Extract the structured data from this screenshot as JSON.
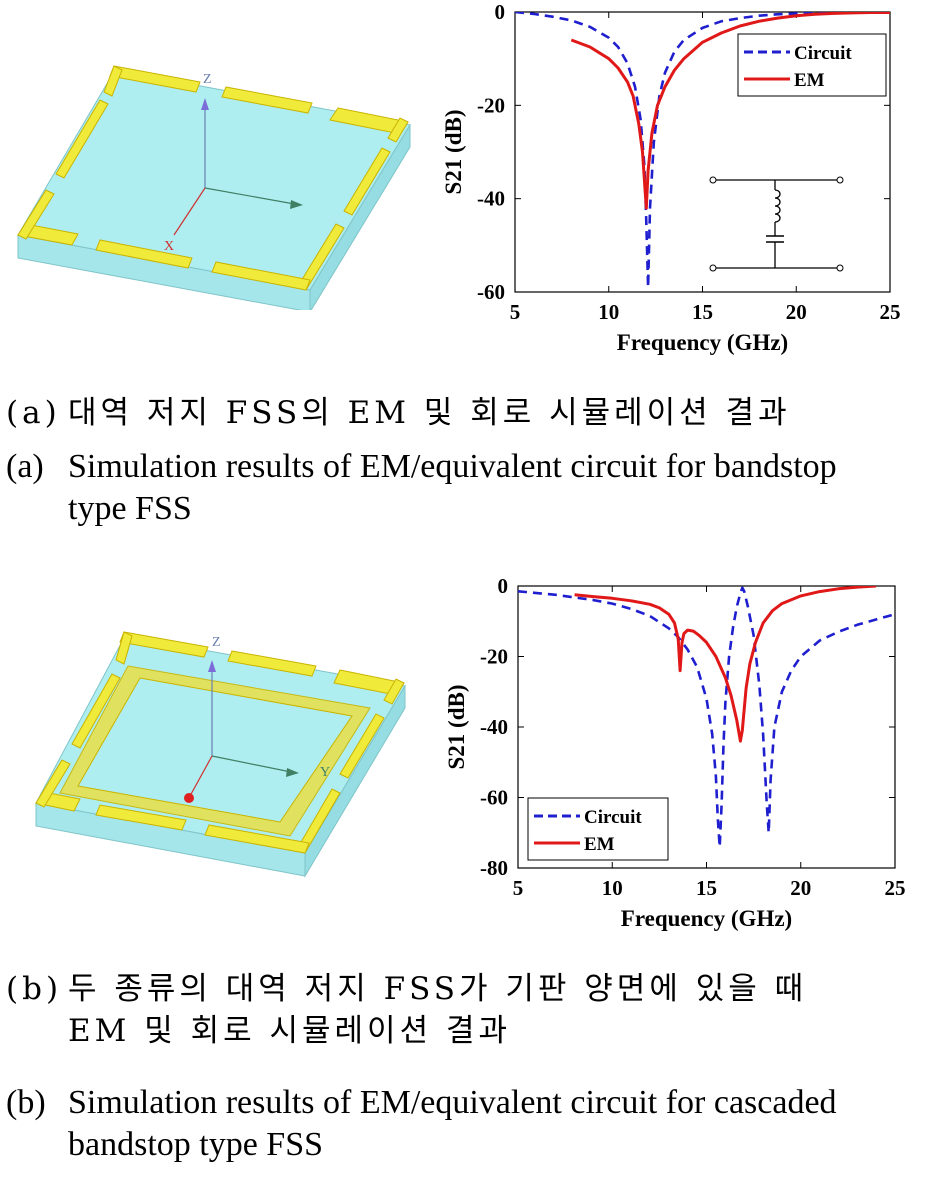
{
  "panel_a": {
    "caption_ko": {
      "tag": "(a)",
      "text": "대역  저지  FSS의  EM  및  회로  시뮬레이션  결과"
    },
    "caption_en": {
      "tag": "(a)",
      "line1": "Simulation results of EM/equivalent circuit for bandstop",
      "line2": "type FSS"
    },
    "model_axes": {
      "z": "Z",
      "x": "X"
    }
  },
  "panel_b": {
    "caption_ko": {
      "tag": "(b)",
      "line1": "두  종류의  대역  저지  FSS가  기판  양면에  있을  때",
      "line2": "EM  및  회로  시뮬레이션  결과"
    },
    "caption_en": {
      "tag": "(b)",
      "line1": "Simulation results of EM/equivalent circuit for cascaded",
      "line2": "bandstop type FSS"
    },
    "model_axes": {
      "z": "Z",
      "y": "Y"
    }
  },
  "colors": {
    "circuit": "#1f1fd0",
    "em": "#e01818",
    "substrate": "#aeeef0",
    "metal": "#f0ea3a",
    "metal_edge": "#c9b400"
  },
  "chart_data": [
    {
      "type": "line",
      "xlabel": "Frequency (GHz)",
      "ylabel": "S21 (dB)",
      "xlim": [
        5,
        25
      ],
      "ylim": [
        -60,
        0
      ],
      "xticks": [
        5,
        10,
        15,
        20,
        25
      ],
      "yticks": [
        0,
        -20,
        -40,
        -60
      ],
      "legend_position": "top-right",
      "inset": "series LC resonator (shunt) schematic",
      "series": [
        {
          "name": "Circuit",
          "style": "dashed",
          "color": "#1f1fd0",
          "x": [
            5,
            6,
            7,
            8,
            9,
            10,
            10.5,
            11,
            11.4,
            11.7,
            11.9,
            12.0,
            12.05,
            12.1,
            12.2,
            12.4,
            12.7,
            13,
            13.5,
            14,
            15,
            16,
            17,
            18,
            19,
            20,
            21,
            22,
            23,
            24,
            25
          ],
          "y": [
            0,
            -0.4,
            -1,
            -1.8,
            -3.2,
            -5.5,
            -7.5,
            -11,
            -16,
            -23,
            -33,
            -45,
            -52,
            -59,
            -42,
            -28,
            -18,
            -13,
            -8.5,
            -6,
            -3.4,
            -2,
            -1.3,
            -0.8,
            -0.5,
            -0.3,
            -0.2,
            -0.1,
            -0.05,
            0,
            0
          ]
        },
        {
          "name": "EM",
          "style": "solid",
          "color": "#e01818",
          "x": [
            8,
            9,
            10,
            10.5,
            11,
            11.3,
            11.6,
            11.8,
            11.9,
            12.0,
            12.1,
            12.3,
            12.6,
            13,
            13.5,
            14,
            15,
            16,
            17,
            18,
            19,
            20,
            21,
            22,
            23,
            24,
            25
          ],
          "y": [
            -6,
            -7.5,
            -10,
            -12,
            -15,
            -18,
            -24,
            -30,
            -36,
            -42,
            -34,
            -26,
            -20,
            -16,
            -12.5,
            -10,
            -6.5,
            -4.5,
            -3,
            -2,
            -1.3,
            -0.8,
            -0.5,
            -0.3,
            -0.2,
            -0.1,
            -0.1
          ]
        }
      ]
    },
    {
      "type": "line",
      "xlabel": "Frequency (GHz)",
      "ylabel": "S21 (dB)",
      "xlim": [
        5,
        25
      ],
      "ylim": [
        -80,
        0
      ],
      "xticks": [
        5,
        10,
        15,
        20,
        25
      ],
      "yticks": [
        0,
        -20,
        -40,
        -60,
        -80
      ],
      "legend_position": "bottom-left",
      "series": [
        {
          "name": "Circuit",
          "style": "dashed",
          "color": "#1f1fd0",
          "x": [
            5,
            7,
            9,
            10,
            11,
            12,
            13,
            13.5,
            14,
            14.5,
            15,
            15.3,
            15.5,
            15.6,
            15.7,
            15.8,
            15.9,
            16.0,
            16.2,
            16.4,
            16.6,
            16.8,
            16.9,
            17.0,
            17.2,
            17.5,
            17.8,
            18.0,
            18.2,
            18.3,
            18.4,
            18.6,
            19,
            19.5,
            20,
            21,
            22,
            23,
            24,
            25
          ],
          "y": [
            -1.5,
            -2.5,
            -4,
            -5,
            -6.5,
            -8.5,
            -12,
            -14.5,
            -18,
            -23,
            -32,
            -42,
            -54,
            -66,
            -74,
            -62,
            -45,
            -33,
            -20,
            -12,
            -6,
            -2,
            -0.5,
            -1.5,
            -6,
            -14,
            -28,
            -42,
            -62,
            -70,
            -55,
            -40,
            -30,
            -24,
            -20,
            -15.5,
            -13,
            -11,
            -9.5,
            -8
          ]
        },
        {
          "name": "EM",
          "style": "solid",
          "color": "#e01818",
          "x": [
            8,
            9,
            10,
            11,
            12,
            12.5,
            13,
            13.3,
            13.5,
            13.6,
            13.7,
            13.8,
            14,
            14.3,
            14.6,
            15,
            15.5,
            16,
            16.3,
            16.6,
            16.8,
            16.9,
            17.0,
            17.1,
            17.3,
            17.6,
            18,
            18.5,
            19,
            20,
            21,
            22,
            23,
            24
          ],
          "y": [
            -2.5,
            -3,
            -3.5,
            -4.2,
            -5.2,
            -6.2,
            -8,
            -10.5,
            -15,
            -24,
            -16,
            -13.5,
            -12.5,
            -12.8,
            -14,
            -16,
            -20,
            -26,
            -31,
            -38,
            -44,
            -41,
            -35,
            -29,
            -22,
            -16,
            -10.5,
            -7,
            -5,
            -2.8,
            -1.6,
            -0.8,
            -0.3,
            0
          ]
        }
      ]
    }
  ]
}
